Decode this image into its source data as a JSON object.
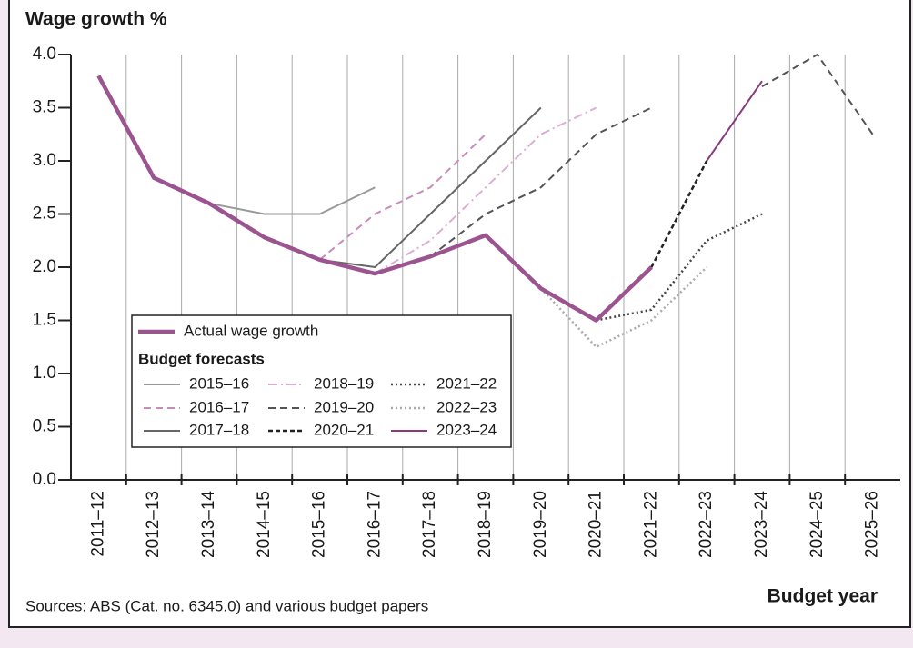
{
  "chart_data": {
    "type": "line",
    "title": "Wage growth %",
    "x_label": "Budget year",
    "source": "Sources: ABS (Cat. no. 6345.0) and various budget papers",
    "legend_title": "Budget forecasts",
    "shade_from": "2022-23",
    "categories": [
      "2011–12",
      "2012–13",
      "2013–14",
      "2014–15",
      "2015–16",
      "2016–17",
      "2017–18",
      "2018–19",
      "2019–20",
      "2020–21",
      "2021–22",
      "2022–23",
      "2023–24",
      "2024–25",
      "2025–26"
    ],
    "ylim": [
      0,
      4
    ],
    "yticks": [
      {
        "value": 0,
        "label": "0.0"
      },
      0.5,
      {
        "value": 1,
        "label": "1.0"
      },
      1.5,
      {
        "value": 2,
        "label": "2.0"
      },
      2.5,
      {
        "value": 3,
        "label": "3.0"
      },
      3.5,
      {
        "value": 4,
        "label": "4.0"
      }
    ],
    "series": [
      {
        "name": "Actual wage growth",
        "color": "#9c5490",
        "style": "thick",
        "values": [
          3.8,
          2.84,
          2.6,
          2.28,
          2.07,
          1.94,
          2.1,
          2.3,
          1.8,
          1.5,
          2.0,
          null,
          null,
          null,
          null
        ]
      },
      {
        "name": "2015–16",
        "color": "#9a9a9a",
        "style": "solid",
        "values": [
          null,
          null,
          2.6,
          2.5,
          2.5,
          2.75,
          null,
          null,
          null,
          null,
          null,
          null,
          null,
          null,
          null
        ]
      },
      {
        "name": "2016–17",
        "color": "#c68dba",
        "style": "dashed",
        "values": [
          null,
          null,
          null,
          null,
          2.07,
          2.5,
          2.75,
          3.25,
          null,
          null,
          null,
          null,
          null,
          null,
          null
        ]
      },
      {
        "name": "2017–18",
        "color": "#666666",
        "style": "solid",
        "values": [
          null,
          null,
          null,
          null,
          2.07,
          2.0,
          2.5,
          3.0,
          3.5,
          null,
          null,
          null,
          null,
          null,
          null
        ]
      },
      {
        "name": "2018–19",
        "color": "#dcafd3",
        "style": "dashdot",
        "values": [
          null,
          null,
          null,
          null,
          null,
          1.94,
          2.25,
          2.75,
          3.25,
          3.5,
          null,
          null,
          null,
          null,
          null
        ]
      },
      {
        "name": "2019–20",
        "color": "#555555",
        "style": "dashed",
        "values": [
          null,
          null,
          null,
          null,
          null,
          null,
          2.1,
          2.5,
          2.75,
          3.25,
          3.5,
          null,
          3.7,
          4.0,
          3.25
        ]
      },
      {
        "name": "2020–21",
        "color": "#222222",
        "style": "densedash",
        "values": [
          null,
          null,
          null,
          null,
          null,
          null,
          null,
          null,
          null,
          null,
          2.0,
          3.0,
          null,
          null,
          null
        ]
      },
      {
        "name": "2021–22",
        "color": "#444444",
        "style": "dotted",
        "values": [
          null,
          null,
          null,
          null,
          null,
          null,
          null,
          null,
          null,
          1.5,
          1.6,
          2.25,
          2.5,
          null,
          null
        ]
      },
      {
        "name": "2022–23",
        "color": "#aaaaaa",
        "style": "dotted",
        "values": [
          null,
          null,
          null,
          null,
          null,
          null,
          null,
          null,
          1.8,
          1.25,
          1.5,
          2.0,
          null,
          null,
          null
        ]
      },
      {
        "name": "2023–24",
        "color": "#8a3a7d",
        "style": "solid",
        "values": [
          null,
          null,
          null,
          null,
          null,
          null,
          null,
          null,
          null,
          null,
          null,
          3.0,
          3.75,
          null,
          null
        ]
      }
    ]
  }
}
